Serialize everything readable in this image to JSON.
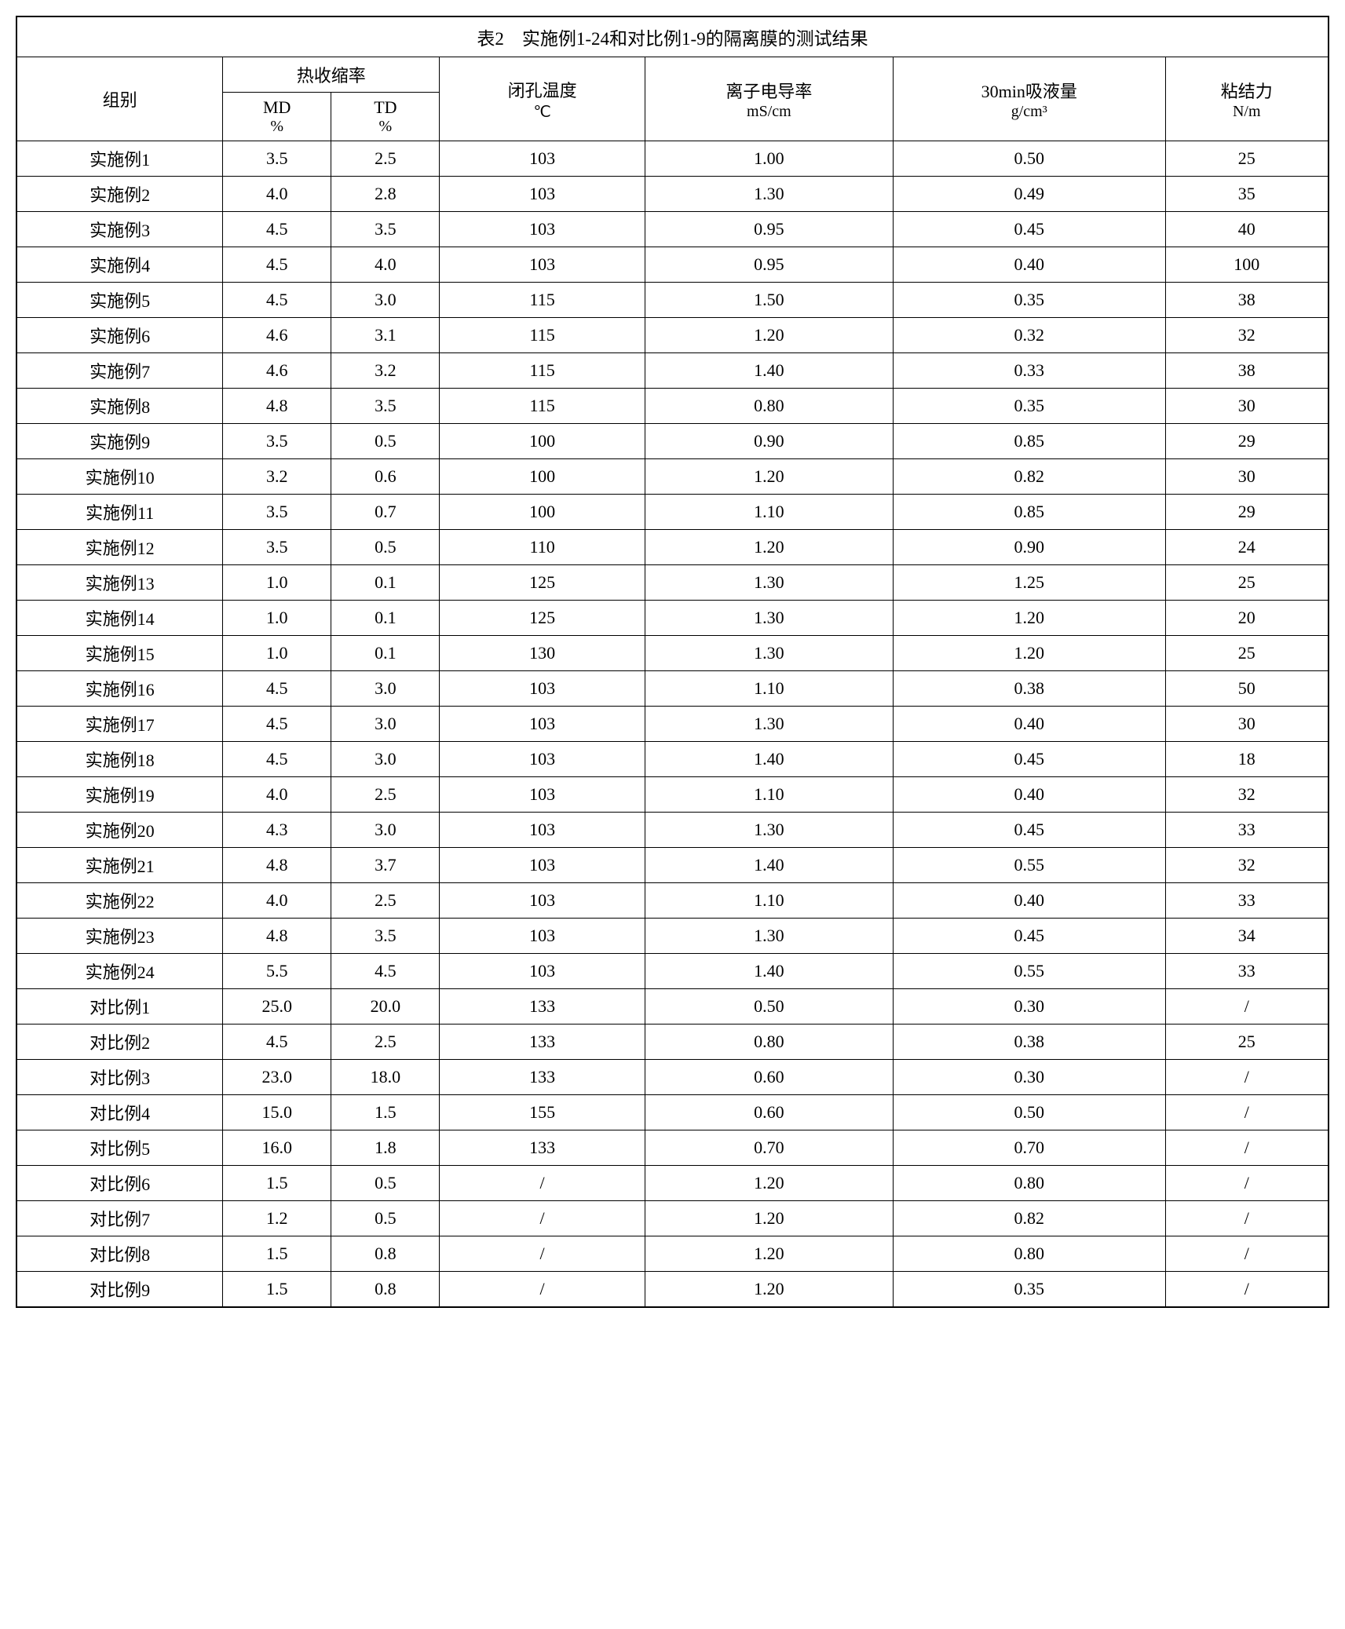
{
  "title": "表2　实施例1-24和对比例1-9的隔离膜的测试结果",
  "headers": {
    "group": "组别",
    "shrinkage": "热收缩率",
    "md": "MD",
    "md_unit": "%",
    "td": "TD",
    "td_unit": "%",
    "closedPore": "闭孔温度",
    "closedPore_unit": "℃",
    "ionic": "离子电导率",
    "ionic_unit": "mS/cm",
    "absorption": "30min吸液量",
    "absorption_unit": "g/cm³",
    "adhesion": "粘结力",
    "adhesion_unit": "N/m"
  },
  "rows": [
    {
      "group": "实施例1",
      "md": "3.5",
      "td": "2.5",
      "cp": "103",
      "ion": "1.00",
      "abs": "0.50",
      "adh": "25"
    },
    {
      "group": "实施例2",
      "md": "4.0",
      "td": "2.8",
      "cp": "103",
      "ion": "1.30",
      "abs": "0.49",
      "adh": "35"
    },
    {
      "group": "实施例3",
      "md": "4.5",
      "td": "3.5",
      "cp": "103",
      "ion": "0.95",
      "abs": "0.45",
      "adh": "40"
    },
    {
      "group": "实施例4",
      "md": "4.5",
      "td": "4.0",
      "cp": "103",
      "ion": "0.95",
      "abs": "0.40",
      "adh": "100"
    },
    {
      "group": "实施例5",
      "md": "4.5",
      "td": "3.0",
      "cp": "115",
      "ion": "1.50",
      "abs": "0.35",
      "adh": "38"
    },
    {
      "group": "实施例6",
      "md": "4.6",
      "td": "3.1",
      "cp": "115",
      "ion": "1.20",
      "abs": "0.32",
      "adh": "32"
    },
    {
      "group": "实施例7",
      "md": "4.6",
      "td": "3.2",
      "cp": "115",
      "ion": "1.40",
      "abs": "0.33",
      "adh": "38"
    },
    {
      "group": "实施例8",
      "md": "4.8",
      "td": "3.5",
      "cp": "115",
      "ion": "0.80",
      "abs": "0.35",
      "adh": "30"
    },
    {
      "group": "实施例9",
      "md": "3.5",
      "td": "0.5",
      "cp": "100",
      "ion": "0.90",
      "abs": "0.85",
      "adh": "29"
    },
    {
      "group": "实施例10",
      "md": "3.2",
      "td": "0.6",
      "cp": "100",
      "ion": "1.20",
      "abs": "0.82",
      "adh": "30"
    },
    {
      "group": "实施例11",
      "md": "3.5",
      "td": "0.7",
      "cp": "100",
      "ion": "1.10",
      "abs": "0.85",
      "adh": "29"
    },
    {
      "group": "实施例12",
      "md": "3.5",
      "td": "0.5",
      "cp": "110",
      "ion": "1.20",
      "abs": "0.90",
      "adh": "24"
    },
    {
      "group": "实施例13",
      "md": "1.0",
      "td": "0.1",
      "cp": "125",
      "ion": "1.30",
      "abs": "1.25",
      "adh": "25"
    },
    {
      "group": "实施例14",
      "md": "1.0",
      "td": "0.1",
      "cp": "125",
      "ion": "1.30",
      "abs": "1.20",
      "adh": "20"
    },
    {
      "group": "实施例15",
      "md": "1.0",
      "td": "0.1",
      "cp": "130",
      "ion": "1.30",
      "abs": "1.20",
      "adh": "25"
    },
    {
      "group": "实施例16",
      "md": "4.5",
      "td": "3.0",
      "cp": "103",
      "ion": "1.10",
      "abs": "0.38",
      "adh": "50"
    },
    {
      "group": "实施例17",
      "md": "4.5",
      "td": "3.0",
      "cp": "103",
      "ion": "1.30",
      "abs": "0.40",
      "adh": "30"
    },
    {
      "group": "实施例18",
      "md": "4.5",
      "td": "3.0",
      "cp": "103",
      "ion": "1.40",
      "abs": "0.45",
      "adh": "18"
    },
    {
      "group": "实施例19",
      "md": "4.0",
      "td": "2.5",
      "cp": "103",
      "ion": "1.10",
      "abs": "0.40",
      "adh": "32"
    },
    {
      "group": "实施例20",
      "md": "4.3",
      "td": "3.0",
      "cp": "103",
      "ion": "1.30",
      "abs": "0.45",
      "adh": "33"
    },
    {
      "group": "实施例21",
      "md": "4.8",
      "td": "3.7",
      "cp": "103",
      "ion": "1.40",
      "abs": "0.55",
      "adh": "32"
    },
    {
      "group": "实施例22",
      "md": "4.0",
      "td": "2.5",
      "cp": "103",
      "ion": "1.10",
      "abs": "0.40",
      "adh": "33"
    },
    {
      "group": "实施例23",
      "md": "4.8",
      "td": "3.5",
      "cp": "103",
      "ion": "1.30",
      "abs": "0.45",
      "adh": "34"
    },
    {
      "group": "实施例24",
      "md": "5.5",
      "td": "4.5",
      "cp": "103",
      "ion": "1.40",
      "abs": "0.55",
      "adh": "33"
    },
    {
      "group": "对比例1",
      "md": "25.0",
      "td": "20.0",
      "cp": "133",
      "ion": "0.50",
      "abs": "0.30",
      "adh": "/"
    },
    {
      "group": "对比例2",
      "md": "4.5",
      "td": "2.5",
      "cp": "133",
      "ion": "0.80",
      "abs": "0.38",
      "adh": "25"
    },
    {
      "group": "对比例3",
      "md": "23.0",
      "td": "18.0",
      "cp": "133",
      "ion": "0.60",
      "abs": "0.30",
      "adh": "/"
    },
    {
      "group": "对比例4",
      "md": "15.0",
      "td": "1.5",
      "cp": "155",
      "ion": "0.60",
      "abs": "0.50",
      "adh": "/"
    },
    {
      "group": "对比例5",
      "md": "16.0",
      "td": "1.8",
      "cp": "133",
      "ion": "0.70",
      "abs": "0.70",
      "adh": "/"
    },
    {
      "group": "对比例6",
      "md": "1.5",
      "td": "0.5",
      "cp": "/",
      "ion": "1.20",
      "abs": "0.80",
      "adh": "/"
    },
    {
      "group": "对比例7",
      "md": "1.2",
      "td": "0.5",
      "cp": "/",
      "ion": "1.20",
      "abs": "0.82",
      "adh": "/"
    },
    {
      "group": "对比例8",
      "md": "1.5",
      "td": "0.8",
      "cp": "/",
      "ion": "1.20",
      "abs": "0.80",
      "adh": "/"
    },
    {
      "group": "对比例9",
      "md": "1.5",
      "td": "0.8",
      "cp": "/",
      "ion": "1.20",
      "abs": "0.35",
      "adh": "/"
    }
  ]
}
